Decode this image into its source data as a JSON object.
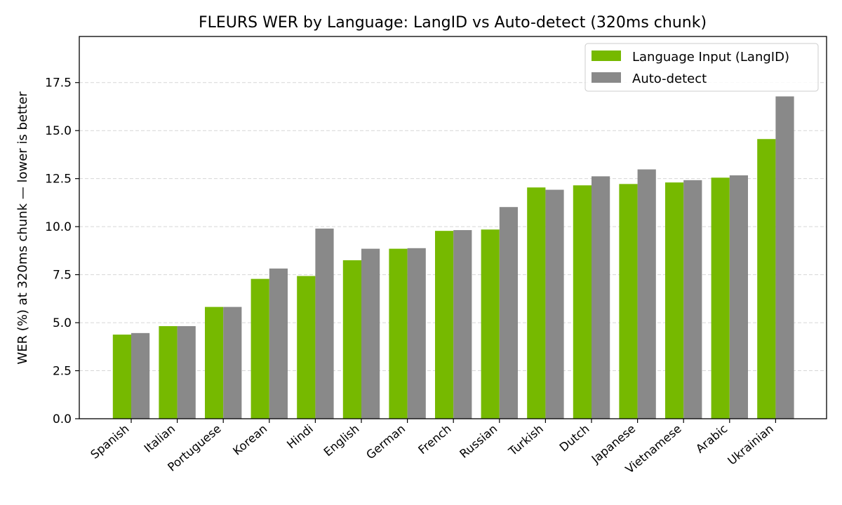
{
  "chart_data": {
    "type": "bar",
    "title": "FLEURS WER by Language: LangID vs Auto-detect (320ms chunk)",
    "xlabel": "",
    "ylabel": "WER (%) at 320ms chunk  —  lower is better",
    "ylim": [
      0,
      19.9
    ],
    "yticks": [
      "0.0",
      "2.5",
      "5.0",
      "7.5",
      "10.0",
      "12.5",
      "15.0",
      "17.5"
    ],
    "grid": "y-dashed",
    "legend_position": "top-right",
    "categories": [
      "Spanish",
      "Italian",
      "Portuguese",
      "Korean",
      "Hindi",
      "English",
      "German",
      "French",
      "Russian",
      "Turkish",
      "Dutch",
      "Japanese",
      "Vietnamese",
      "Arabic",
      "Ukrainian"
    ],
    "series": [
      {
        "name": "Language Input (LangID)",
        "color": "#76b900",
        "values": [
          4.38,
          4.82,
          5.82,
          7.28,
          7.43,
          8.25,
          8.85,
          9.78,
          9.85,
          12.04,
          12.15,
          12.22,
          12.3,
          12.55,
          14.56
        ]
      },
      {
        "name": "Auto-detect",
        "color": "#898989",
        "values": [
          4.46,
          4.82,
          5.82,
          7.82,
          9.9,
          8.85,
          8.88,
          9.82,
          11.02,
          11.92,
          12.62,
          12.98,
          12.42,
          12.67,
          16.78
        ]
      }
    ]
  }
}
